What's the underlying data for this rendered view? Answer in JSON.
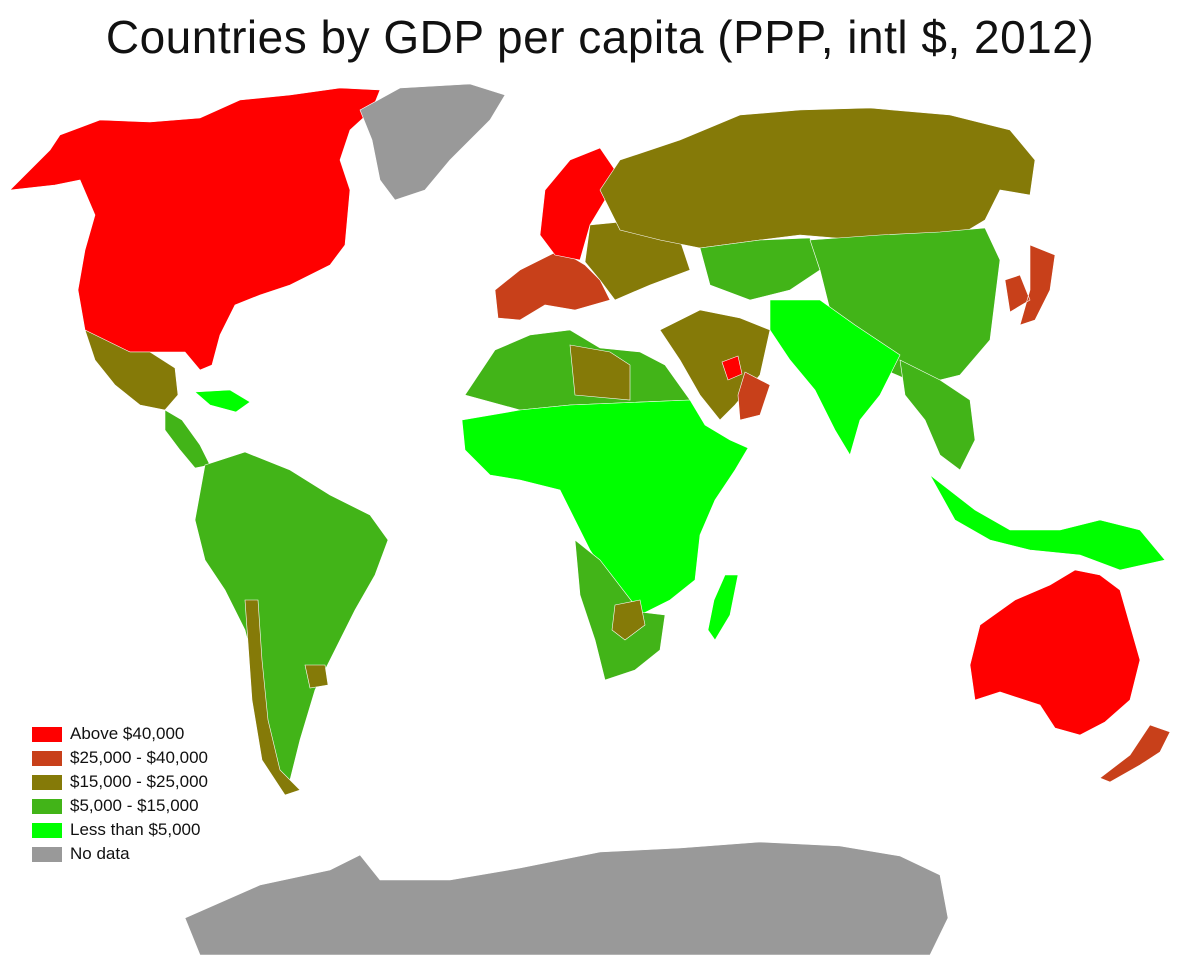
{
  "title": "Countries by GDP per capita (PPP, intl $, 2012)",
  "legend": {
    "items": [
      {
        "label": "Above $40,000",
        "color": "#ff0000"
      },
      {
        "label": "$25,000 - $40,000",
        "color": "#c8401a"
      },
      {
        "label": "$15,000 - $25,000",
        "color": "#857a08"
      },
      {
        "label": "$5,000 - $15,000",
        "color": "#42b418"
      },
      {
        "label": "Less than $5,000",
        "color": "#00ff00"
      },
      {
        "label": "No data",
        "color": "#999999"
      }
    ]
  },
  "regions": [
    {
      "name": "north-america-high",
      "category": 0
    },
    {
      "name": "greenland",
      "category": 5
    },
    {
      "name": "mexico",
      "category": 2
    },
    {
      "name": "central-america",
      "category": 3
    },
    {
      "name": "caribbean",
      "category": 4
    },
    {
      "name": "south-america",
      "category": 3
    },
    {
      "name": "chile",
      "category": 2
    },
    {
      "name": "uruguay",
      "category": 2
    },
    {
      "name": "western-europe",
      "category": 1
    },
    {
      "name": "northern-europe",
      "category": 0
    },
    {
      "name": "eastern-europe",
      "category": 2
    },
    {
      "name": "russia",
      "category": 2
    },
    {
      "name": "central-asia",
      "category": 3
    },
    {
      "name": "china",
      "category": 3
    },
    {
      "name": "japan-korea",
      "category": 1
    },
    {
      "name": "south-asia",
      "category": 4
    },
    {
      "name": "southeast-asia",
      "category": 3
    },
    {
      "name": "indonesia",
      "category": 4
    },
    {
      "name": "middle-east",
      "category": 2
    },
    {
      "name": "gulf-states",
      "category": 0
    },
    {
      "name": "oman",
      "category": 1
    },
    {
      "name": "north-africa",
      "category": 3
    },
    {
      "name": "libya",
      "category": 2
    },
    {
      "name": "sub-saharan-africa",
      "category": 4
    },
    {
      "name": "southern-africa",
      "category": 3
    },
    {
      "name": "botswana",
      "category": 2
    },
    {
      "name": "madagascar",
      "category": 4
    },
    {
      "name": "australia",
      "category": 0
    },
    {
      "name": "new-zealand",
      "category": 1
    },
    {
      "name": "antarctica",
      "category": 5
    }
  ]
}
